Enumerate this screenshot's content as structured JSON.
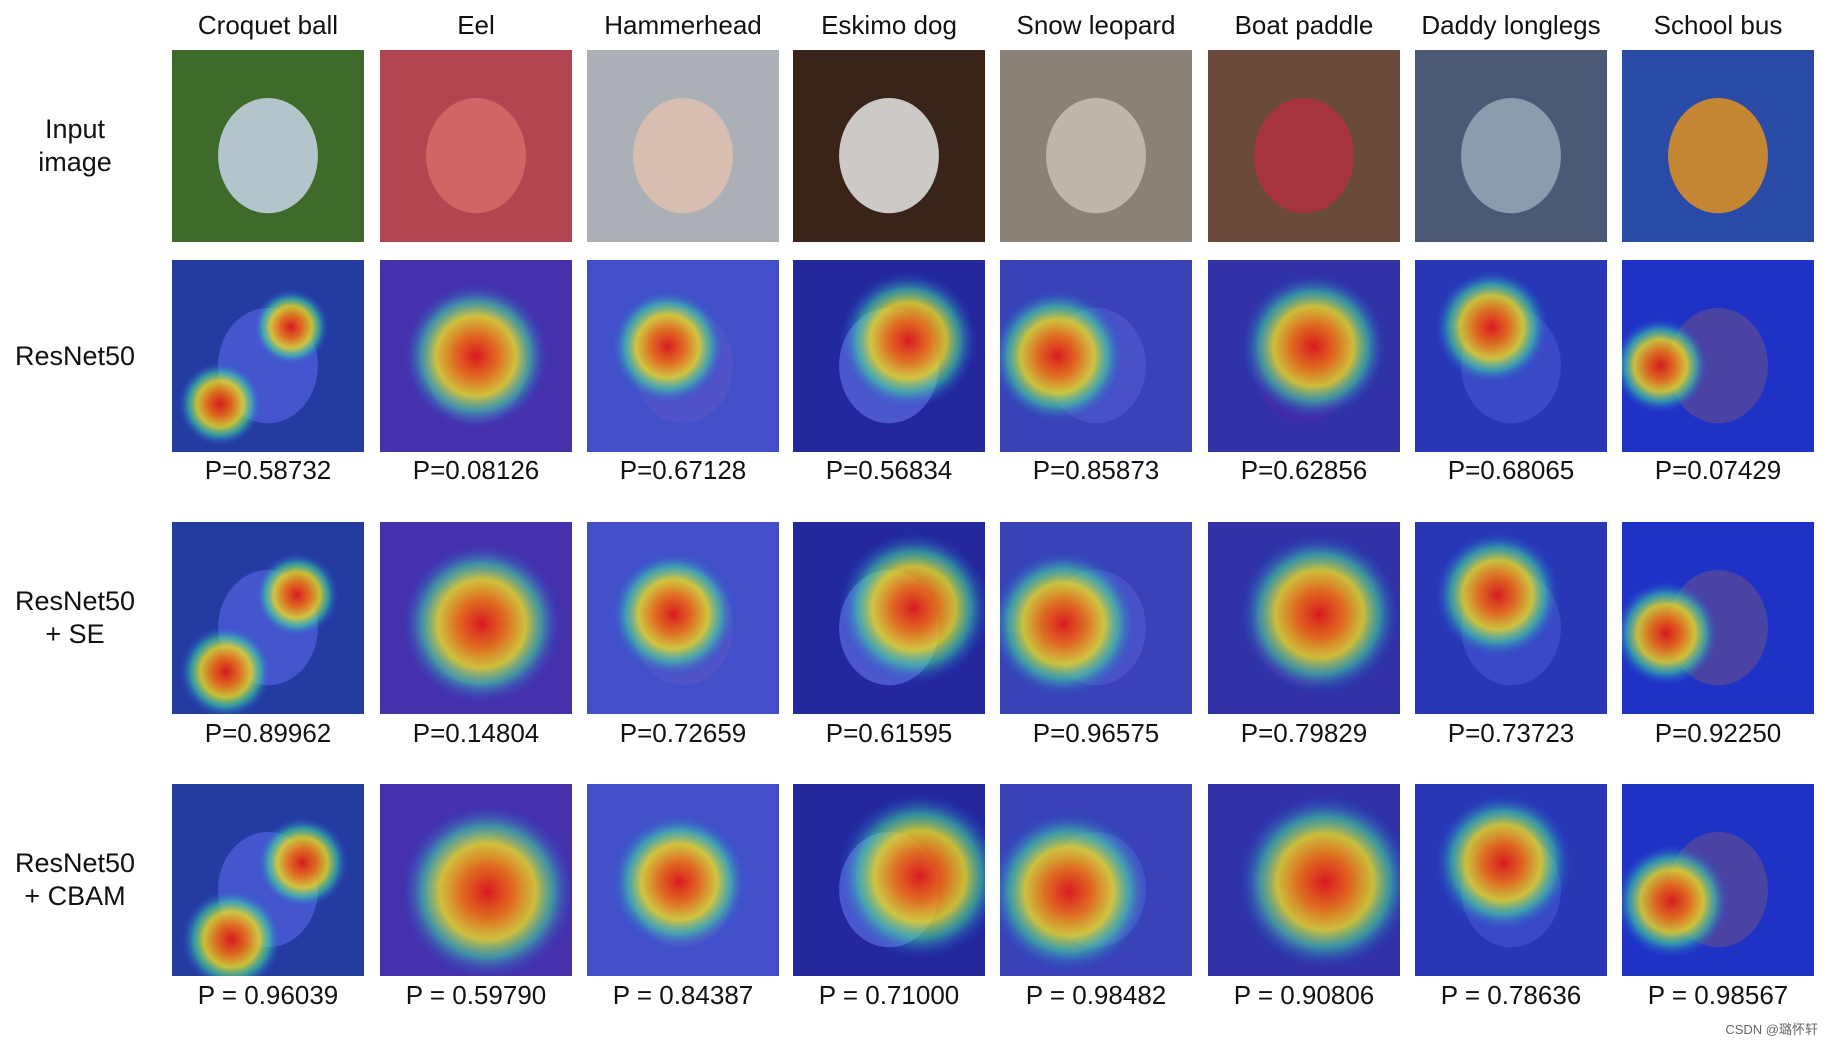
{
  "columns": [
    "Croquet ball",
    "Eel",
    "Hammerhead",
    "Eskimo dog",
    "Snow leopard",
    "Boat paddle",
    "Daddy longlegs",
    "School bus"
  ],
  "rows": [
    {
      "label": "Input\nimage",
      "kind": "photo",
      "probs": []
    },
    {
      "label": "ResNet50",
      "kind": "cam",
      "probs": [
        "P=0.58732",
        "P=0.08126",
        "P=0.67128",
        "P=0.56834",
        "P=0.85873",
        "P=0.62856",
        "P=0.68065",
        "P=0.07429"
      ]
    },
    {
      "label": "ResNet50\n+ SE",
      "kind": "cam",
      "probs": [
        "P=0.89962",
        "P=0.14804",
        "P=0.72659",
        "P=0.61595",
        "P=0.96575",
        "P=0.79829",
        "P=0.73723",
        "P=0.92250"
      ]
    },
    {
      "label": "ResNet50\n+ CBAM",
      "kind": "cam",
      "probs": [
        "P = 0.96039",
        "P = 0.59790",
        "P = 0.84387",
        "P = 0.71000",
        "P = 0.98482",
        "P = 0.90806",
        "P = 0.78636",
        "P = 0.98567"
      ]
    }
  ],
  "photo_colors": [
    {
      "bg": "#3f6b2a",
      "fg": "#c8d4e6"
    },
    {
      "bg": "#b2454f",
      "fg": "#d86a6a"
    },
    {
      "bg": "#aab0b6",
      "fg": "#e0c0b0"
    },
    {
      "bg": "#3a2418",
      "fg": "#e6e6e6"
    },
    {
      "bg": "#8a8276",
      "fg": "#c8c0b6"
    },
    {
      "bg": "#6a4a3a",
      "fg": "#b03040"
    },
    {
      "bg": "#4a5a74",
      "fg": "#9aa6b8"
    },
    {
      "bg": "#2a4aa8",
      "fg": "#e09020"
    }
  ],
  "hotspots": [
    [
      [
        0.25,
        0.75,
        0.22
      ],
      [
        0.62,
        0.35,
        0.2
      ]
    ],
    [
      [
        0.5,
        0.5,
        0.38
      ]
    ],
    [
      [
        0.42,
        0.45,
        0.3
      ]
    ],
    [
      [
        0.6,
        0.42,
        0.36
      ]
    ],
    [
      [
        0.3,
        0.5,
        0.35
      ]
    ],
    [
      [
        0.55,
        0.45,
        0.38
      ]
    ],
    [
      [
        0.4,
        0.35,
        0.3
      ]
    ],
    [
      [
        0.2,
        0.55,
        0.25
      ]
    ]
  ],
  "watermark": "CSDN @璐怀轩"
}
